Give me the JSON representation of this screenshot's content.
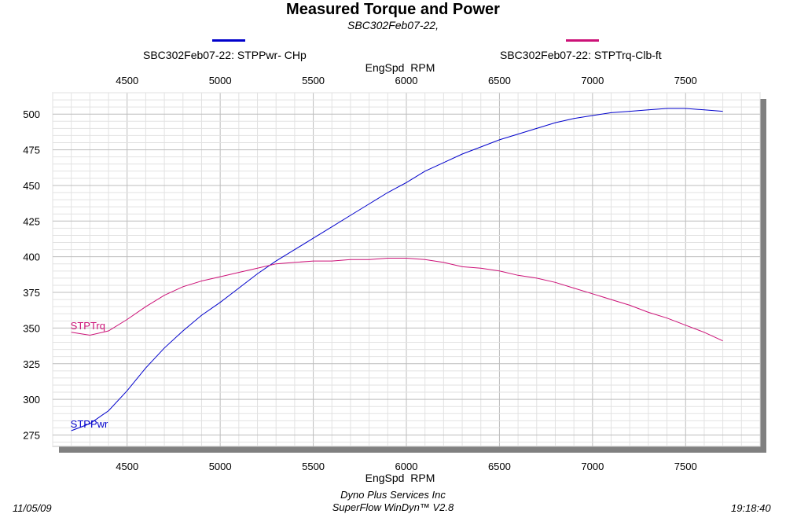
{
  "title": "Measured Torque and Power",
  "subtitle": "SBC302Feb07-22,",
  "legend": [
    {
      "label": "SBC302Feb07-22: STPPwr- CHp",
      "color": "#0000cc"
    },
    {
      "label": "SBC302Feb07-22: STPTrq-Clb-ft",
      "color": "#cc1177"
    }
  ],
  "footer": {
    "date": "11/05/09",
    "company": "Dyno Plus Services Inc",
    "software": "SuperFlow WinDyn™ V2.8",
    "time": "19:18:40"
  },
  "chart_data": {
    "type": "line",
    "title": "Measured Torque and Power",
    "subtitle": "SBC302Feb07-22,",
    "xlabel": "EngSpd  RPM",
    "ylabel": "",
    "xlim": [
      4100,
      7900
    ],
    "ylim": [
      267,
      515
    ],
    "x_ticks": [
      4500,
      5000,
      5500,
      6000,
      6500,
      7000,
      7500
    ],
    "y_ticks": [
      275,
      300,
      325,
      350,
      375,
      400,
      425,
      450,
      475,
      500
    ],
    "grid": true,
    "series": [
      {
        "name": "SBC302Feb07-22: STPPwr- CHp",
        "label": "STPPwr",
        "color": "#0000cc",
        "x": [
          4200,
          4300,
          4400,
          4500,
          4600,
          4700,
          4800,
          4900,
          5000,
          5100,
          5200,
          5300,
          5400,
          5500,
          5600,
          5700,
          5800,
          5900,
          6000,
          6100,
          6200,
          6300,
          6400,
          6500,
          6600,
          6700,
          6800,
          6900,
          7000,
          7100,
          7200,
          7300,
          7400,
          7500,
          7600,
          7700
        ],
        "values": [
          278,
          283,
          292,
          306,
          322,
          336,
          348,
          359,
          368,
          378,
          388,
          397,
          405,
          413,
          421,
          429,
          437,
          445,
          452,
          460,
          466,
          472,
          477,
          482,
          486,
          490,
          494,
          497,
          499,
          501,
          502,
          503,
          504,
          504,
          503,
          502
        ]
      },
      {
        "name": "SBC302Feb07-22: STPTrq-Clb-ft",
        "label": "STPTrq",
        "color": "#cc1177",
        "x": [
          4200,
          4300,
          4400,
          4500,
          4600,
          4700,
          4800,
          4900,
          5000,
          5100,
          5200,
          5300,
          5400,
          5500,
          5600,
          5700,
          5800,
          5900,
          6000,
          6100,
          6200,
          6300,
          6400,
          6500,
          6600,
          6700,
          6800,
          6900,
          7000,
          7100,
          7200,
          7300,
          7400,
          7500,
          7600,
          7700
        ],
        "values": [
          347,
          345,
          348,
          356,
          365,
          373,
          379,
          383,
          386,
          389,
          392,
          395,
          396,
          397,
          397,
          398,
          398,
          399,
          399,
          398,
          396,
          393,
          392,
          390,
          387,
          385,
          382,
          378,
          374,
          370,
          366,
          361,
          357,
          352,
          347,
          341
        ]
      }
    ]
  }
}
